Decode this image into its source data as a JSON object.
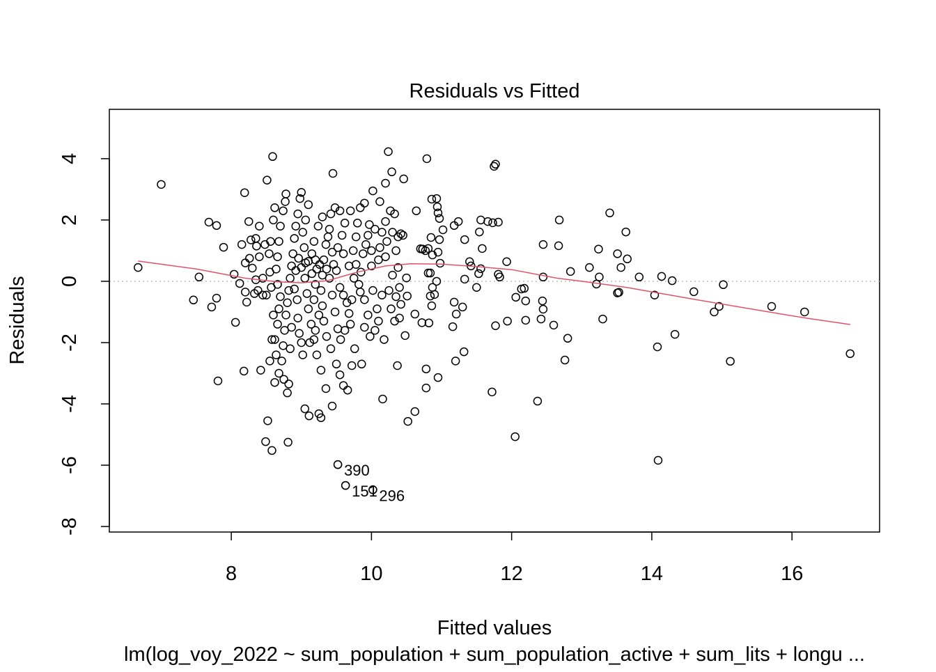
{
  "chart_data": {
    "type": "scatter",
    "title": "Residuals vs Fitted",
    "xlabel": "Fitted values",
    "ylabel": "Residuals",
    "subtitle": "lm(log_voy_2022 ~ sum_population + sum_population_active + sum_lits + longu ...",
    "xlim": [
      6.26,
      17.25
    ],
    "ylim": [
      -8.18,
      5.61
    ],
    "xticks": [
      8,
      10,
      12,
      14,
      16
    ],
    "yticks": [
      -8,
      -6,
      -4,
      -2,
      0,
      2,
      4
    ],
    "grid": false,
    "reference_line": 0,
    "colors": {
      "points": "#000000",
      "smooth": "#DF536B",
      "reference": "#BEBEBE"
    },
    "labeled_points": [
      {
        "label": "390",
        "x": 9.52,
        "y": -5.98
      },
      {
        "label": "151",
        "x": 9.63,
        "y": -6.66
      },
      {
        "label": "296",
        "x": 10.02,
        "y": -6.8
      }
    ],
    "smooth": [
      [
        6.67,
        0.66
      ],
      [
        7.5,
        0.4
      ],
      [
        8.2,
        0.1
      ],
      [
        8.67,
        -0.02
      ],
      [
        9.0,
        -0.05
      ],
      [
        9.37,
        0.02
      ],
      [
        9.8,
        0.3
      ],
      [
        10.2,
        0.5
      ],
      [
        10.56,
        0.57
      ],
      [
        11.0,
        0.56
      ],
      [
        11.5,
        0.48
      ],
      [
        12.0,
        0.38
      ],
      [
        12.65,
        0.1
      ],
      [
        13.0,
        0.0
      ],
      [
        13.64,
        -0.2
      ],
      [
        14.63,
        -0.6
      ],
      [
        15.62,
        -0.98
      ],
      [
        16.2,
        -1.2
      ],
      [
        16.83,
        -1.41
      ]
    ],
    "points": [
      [
        6.67,
        0.45
      ],
      [
        7.0,
        3.16
      ],
      [
        7.46,
        -0.61
      ],
      [
        7.54,
        0.14
      ],
      [
        7.68,
        1.93
      ],
      [
        7.72,
        -0.84
      ],
      [
        7.79,
        1.82
      ],
      [
        7.79,
        -0.55
      ],
      [
        7.81,
        -3.25
      ],
      [
        7.89,
        1.11
      ],
      [
        8.04,
        0.23
      ],
      [
        8.06,
        -1.34
      ],
      [
        8.19,
        2.89
      ],
      [
        8.18,
        -2.93
      ],
      [
        8.25,
        1.95
      ],
      [
        8.22,
        -0.68
      ],
      [
        8.26,
        0.75
      ],
      [
        8.3,
        0.43
      ],
      [
        8.35,
        1.4
      ],
      [
        8.38,
        -0.3
      ],
      [
        8.4,
        1.8
      ],
      [
        8.42,
        -2.9
      ],
      [
        8.45,
        0.1
      ],
      [
        8.48,
        1.2
      ],
      [
        8.5,
        -0.45
      ],
      [
        8.51,
        3.3
      ],
      [
        8.52,
        -4.55
      ],
      [
        8.49,
        -5.23
      ],
      [
        8.58,
        -5.52
      ],
      [
        8.81,
        -5.25
      ],
      [
        8.59,
        4.07
      ],
      [
        8.8,
        -3.64
      ],
      [
        9.05,
        -4.16
      ],
      [
        9.11,
        -4.39
      ],
      [
        9.25,
        -4.32
      ],
      [
        9.28,
        -4.45
      ],
      [
        9.44,
        -4.07
      ],
      [
        9.52,
        -5.98
      ],
      [
        9.63,
        -6.66
      ],
      [
        10.02,
        -6.8
      ],
      [
        9.45,
        3.52
      ],
      [
        10.24,
        4.23
      ],
      [
        10.29,
        3.57
      ],
      [
        10.46,
        3.34
      ],
      [
        10.79,
        4.0
      ],
      [
        11.75,
        3.75
      ],
      [
        11.77,
        3.82
      ],
      [
        10.16,
        -3.84
      ],
      [
        10.52,
        -4.57
      ],
      [
        10.62,
        -4.25
      ],
      [
        10.78,
        -3.48
      ],
      [
        10.95,
        -3.14
      ],
      [
        10.78,
        -2.86
      ],
      [
        10.37,
        -2.75
      ],
      [
        11.2,
        -2.6
      ],
      [
        11.32,
        -2.3
      ],
      [
        11.72,
        -3.61
      ],
      [
        12.05,
        -5.07
      ],
      [
        12.37,
        -3.91
      ],
      [
        12.76,
        -2.57
      ],
      [
        12.8,
        -1.86
      ],
      [
        13.3,
        -1.23
      ],
      [
        13.4,
        2.23
      ],
      [
        13.63,
        1.61
      ],
      [
        13.65,
        0.73
      ],
      [
        13.53,
        -0.36
      ],
      [
        13.51,
        -0.38
      ],
      [
        13.56,
        0.45
      ],
      [
        13.51,
        0.9
      ],
      [
        13.24,
        1.05
      ],
      [
        13.11,
        0.45
      ],
      [
        13.21,
        -0.09
      ],
      [
        13.25,
        0.14
      ],
      [
        13.82,
        0.14
      ],
      [
        14.04,
        -0.45
      ],
      [
        14.08,
        -2.14
      ],
      [
        14.09,
        -5.84
      ],
      [
        14.14,
        0.16
      ],
      [
        14.29,
        0.02
      ],
      [
        14.33,
        -1.73
      ],
      [
        14.6,
        -0.34
      ],
      [
        14.89,
        -1.0
      ],
      [
        14.96,
        -0.82
      ],
      [
        15.02,
        -0.11
      ],
      [
        15.12,
        -2.61
      ],
      [
        15.71,
        -0.82
      ],
      [
        16.18,
        -1.0
      ],
      [
        16.83,
        -2.36
      ],
      [
        12.84,
        0.32
      ],
      [
        12.45,
        0.14
      ],
      [
        12.45,
        1.2
      ],
      [
        12.67,
        1.16
      ],
      [
        12.68,
        2.0
      ],
      [
        12.6,
        -1.43
      ],
      [
        12.42,
        -1.23
      ],
      [
        12.44,
        -0.64
      ],
      [
        12.45,
        -0.91
      ],
      [
        12.2,
        -0.64
      ],
      [
        12.2,
        -1.27
      ],
      [
        12.18,
        -0.23
      ],
      [
        12.14,
        -0.25
      ],
      [
        12.06,
        -0.52
      ],
      [
        11.93,
        0.64
      ],
      [
        11.94,
        -1.3
      ],
      [
        11.77,
        -1.45
      ],
      [
        11.81,
        0.23
      ],
      [
        11.83,
        0.14
      ],
      [
        11.81,
        1.93
      ],
      [
        11.73,
        1.91
      ],
      [
        11.66,
        1.95
      ],
      [
        11.56,
        2.0
      ],
      [
        11.54,
        1.61
      ],
      [
        11.58,
        1.07
      ],
      [
        11.56,
        0.41
      ],
      [
        11.5,
        -0.2
      ],
      [
        11.53,
        0.25
      ],
      [
        11.42,
        0.5
      ],
      [
        11.4,
        0.64
      ],
      [
        11.33,
        1.36
      ],
      [
        11.33,
        0.07
      ],
      [
        11.24,
        1.95
      ],
      [
        11.18,
        1.82
      ],
      [
        11.18,
        -0.68
      ],
      [
        11.21,
        -1.07
      ],
      [
        11.3,
        -0.84
      ],
      [
        11.16,
        -1.48
      ],
      [
        10.97,
        2.05
      ],
      [
        11.02,
        1.68
      ],
      [
        10.97,
        1.36
      ],
      [
        10.95,
        0.95
      ],
      [
        10.98,
        0.59
      ],
      [
        10.87,
        0.86
      ],
      [
        10.93,
        0.0
      ],
      [
        10.87,
        -0.2
      ],
      [
        10.9,
        -0.43
      ],
      [
        10.84,
        -0.48
      ],
      [
        10.82,
        -1.36
      ],
      [
        10.86,
        -0.8
      ],
      [
        10.84,
        0.27
      ],
      [
        10.81,
        0.27
      ],
      [
        10.81,
        1.07
      ],
      [
        10.77,
        1.0
      ],
      [
        10.73,
        1.05
      ],
      [
        10.85,
        1.43
      ],
      [
        10.95,
        2.23
      ],
      [
        10.94,
        2.43
      ],
      [
        10.93,
        2.7
      ],
      [
        10.86,
        2.68
      ],
      [
        10.64,
        2.3
      ],
      [
        10.73,
        1.05
      ],
      [
        10.7,
        1.06
      ],
      [
        10.72,
        -1.35
      ],
      [
        10.62,
        -1.07
      ],
      [
        10.5,
        0.11
      ],
      [
        10.51,
        -0.48
      ],
      [
        10.48,
        -1.77
      ],
      [
        10.4,
        -1.2
      ],
      [
        10.35,
        -0.5
      ],
      [
        10.3,
        0.2
      ],
      [
        10.45,
        1.5
      ],
      [
        10.38,
        1.45
      ],
      [
        10.42,
        1.55
      ],
      [
        10.33,
        2.2
      ],
      [
        10.27,
        2.3
      ],
      [
        10.2,
        1.95
      ],
      [
        10.15,
        1.6
      ],
      [
        10.12,
        1.1
      ],
      [
        10.1,
        0.7
      ],
      [
        10.05,
        1.7
      ],
      [
        10.02,
        2.95
      ],
      [
        10.12,
        2.6
      ],
      [
        10.2,
        3.2
      ],
      [
        9.97,
        1.85
      ],
      [
        9.92,
        1.2
      ],
      [
        9.88,
        0.9
      ],
      [
        9.85,
        0.3
      ],
      [
        9.82,
        -0.1
      ],
      [
        9.9,
        -0.6
      ],
      [
        9.95,
        -1.1
      ],
      [
        10.05,
        -1.6
      ],
      [
        10.18,
        -1.9
      ],
      [
        10.25,
        -0.3
      ],
      [
        10.28,
        -0.9
      ],
      [
        9.9,
        -1.5
      ],
      [
        9.86,
        -2.7
      ],
      [
        9.76,
        -2.2
      ],
      [
        9.72,
        -2.75
      ],
      [
        9.7,
        -1.4
      ],
      [
        9.65,
        -0.7
      ],
      [
        9.6,
        -0.45
      ],
      [
        9.55,
        -0.2
      ],
      [
        9.5,
        0.35
      ],
      [
        9.6,
        0.9
      ],
      [
        9.58,
        1.5
      ],
      [
        9.62,
        1.9
      ],
      [
        9.55,
        2.3
      ],
      [
        9.48,
        2.4
      ],
      [
        9.42,
        2.2
      ],
      [
        9.4,
        1.7
      ],
      [
        9.35,
        1.2
      ],
      [
        9.32,
        0.7
      ],
      [
        9.3,
        0.2
      ],
      [
        9.28,
        -0.3
      ],
      [
        9.3,
        -0.8
      ],
      [
        9.32,
        -1.3
      ],
      [
        9.36,
        -1.8
      ],
      [
        9.42,
        -2.2
      ],
      [
        9.5,
        -2.7
      ],
      [
        9.55,
        -3.05
      ],
      [
        9.6,
        -3.4
      ],
      [
        9.66,
        -3.55
      ],
      [
        9.35,
        -3.5
      ],
      [
        9.28,
        -2.9
      ],
      [
        9.22,
        -2.4
      ],
      [
        9.18,
        -1.9
      ],
      [
        9.14,
        -1.4
      ],
      [
        9.1,
        -0.9
      ],
      [
        9.08,
        -0.4
      ],
      [
        9.05,
        0.1
      ],
      [
        9.06,
        0.6
      ],
      [
        9.04,
        1.1
      ],
      [
        9.02,
        1.6
      ],
      [
        9.06,
        2.0
      ],
      [
        9.1,
        2.5
      ],
      [
        9.0,
        2.9
      ],
      [
        8.98,
        2.7
      ],
      [
        8.95,
        2.2
      ],
      [
        8.92,
        1.8
      ],
      [
        8.9,
        1.4
      ],
      [
        8.88,
        0.9
      ],
      [
        8.86,
        0.5
      ],
      [
        8.84,
        0.1
      ],
      [
        8.82,
        -0.3
      ],
      [
        8.8,
        -0.7
      ],
      [
        8.78,
        -1.1
      ],
      [
        8.76,
        -1.6
      ],
      [
        8.74,
        -2.1
      ],
      [
        8.72,
        -2.6
      ],
      [
        8.75,
        -3.2
      ],
      [
        8.82,
        -3.35
      ],
      [
        8.68,
        -3.0
      ],
      [
        8.64,
        -2.4
      ],
      [
        8.62,
        -1.9
      ],
      [
        8.66,
        -1.4
      ],
      [
        8.68,
        -0.9
      ],
      [
        8.7,
        -0.5
      ],
      [
        8.66,
        -0.1
      ],
      [
        8.64,
        0.4
      ],
      [
        8.66,
        0.8
      ],
      [
        8.68,
        1.3
      ],
      [
        8.7,
        1.8
      ],
      [
        8.74,
        2.3
      ],
      [
        8.77,
        2.6
      ],
      [
        8.78,
        2.85
      ],
      [
        8.62,
        2.4
      ],
      [
        8.6,
        2.0
      ],
      [
        8.56,
        1.3
      ],
      [
        8.54,
        0.9
      ],
      [
        8.55,
        0.3
      ],
      [
        8.57,
        -0.2
      ],
      [
        8.6,
        -1.1
      ],
      [
        8.58,
        -1.9
      ],
      [
        8.55,
        -2.6
      ],
      [
        8.62,
        -3.3
      ],
      [
        8.95,
        -1.2
      ],
      [
        8.97,
        -1.7
      ],
      [
        9.0,
        -2.0
      ],
      [
        9.02,
        -2.4
      ],
      [
        9.12,
        -2.0
      ],
      [
        9.2,
        -1.6
      ],
      [
        9.25,
        -1.1
      ],
      [
        9.18,
        -0.6
      ],
      [
        9.2,
        -0.1
      ],
      [
        9.22,
        0.4
      ],
      [
        9.15,
        0.9
      ],
      [
        9.18,
        1.3
      ],
      [
        9.24,
        1.8
      ],
      [
        9.3,
        2.1
      ],
      [
        9.38,
        1.45
      ],
      [
        9.44,
        0.95
      ],
      [
        9.46,
        0.55
      ],
      [
        9.4,
        0.1
      ],
      [
        9.44,
        -0.45
      ],
      [
        9.48,
        -1.0
      ],
      [
        9.52,
        -1.55
      ],
      [
        9.56,
        -1.9
      ],
      [
        9.62,
        -1.6
      ],
      [
        9.68,
        -1.05
      ],
      [
        9.72,
        -0.6
      ],
      [
        9.75,
        0.1
      ],
      [
        9.78,
        0.55
      ],
      [
        9.74,
        1.0
      ],
      [
        9.78,
        1.45
      ],
      [
        9.8,
        1.9
      ],
      [
        9.7,
        2.3
      ],
      [
        9.84,
        2.4
      ],
      [
        9.9,
        2.55
      ],
      [
        9.95,
        1.5
      ],
      [
        10.0,
        1.0
      ],
      [
        10.0,
        0.5
      ],
      [
        10.02,
        -0.3
      ],
      [
        10.08,
        -0.9
      ],
      [
        10.15,
        -0.45
      ],
      [
        10.2,
        0.8
      ],
      [
        10.22,
        1.3
      ],
      [
        10.3,
        1.6
      ],
      [
        10.35,
        1.0
      ],
      [
        10.38,
        0.45
      ],
      [
        10.4,
        -0.2
      ],
      [
        10.42,
        -0.75
      ],
      [
        10.33,
        -1.3
      ],
      [
        10.1,
        -1.3
      ],
      [
        9.98,
        -1.8
      ],
      [
        9.84,
        -0.35
      ],
      [
        9.68,
        0.5
      ],
      [
        9.52,
        1.1
      ],
      [
        9.36,
        0.4
      ],
      [
        9.15,
        0.25
      ],
      [
        8.92,
        0.35
      ],
      [
        8.9,
        -0.25
      ],
      [
        8.94,
        -0.6
      ],
      [
        8.86,
        -1.5
      ],
      [
        8.84,
        -2.2
      ],
      [
        8.96,
        0.75
      ],
      [
        9.0,
        0.45
      ],
      [
        9.1,
        0.65
      ],
      [
        9.2,
        0.7
      ],
      [
        9.26,
        0.55
      ],
      [
        8.45,
        -0.45
      ],
      [
        8.35,
        0.05
      ],
      [
        8.33,
        -0.4
      ],
      [
        8.28,
        1.35
      ],
      [
        8.4,
        0.8
      ],
      [
        8.36,
        1.15
      ],
      [
        8.12,
        -0.07
      ],
      [
        8.15,
        1.2
      ],
      [
        8.2,
        -0.35
      ],
      [
        8.2,
        0.6
      ]
    ]
  }
}
